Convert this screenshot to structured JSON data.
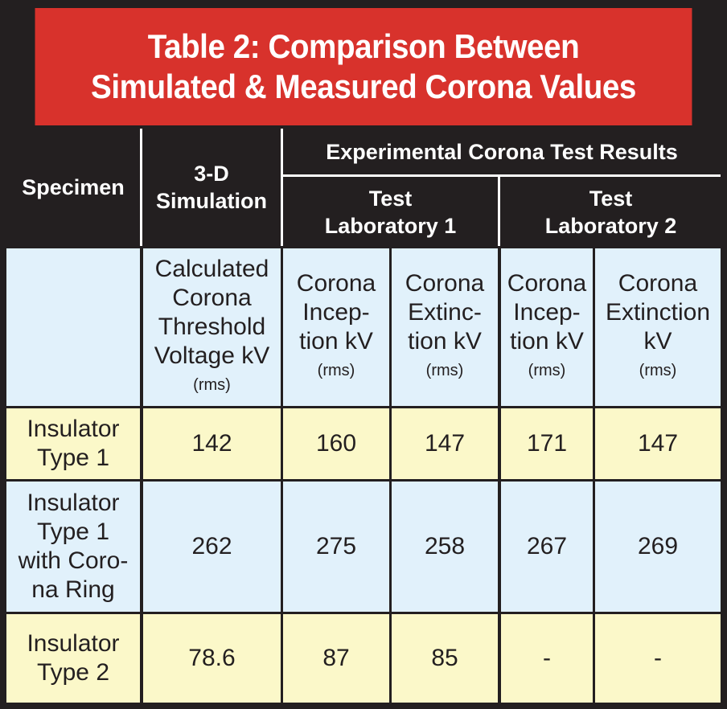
{
  "title": {
    "line1": "Table 2: Comparison Between",
    "line2": "Simulated & Measured Corona Values"
  },
  "header": {
    "specimen": "Specimen",
    "sim_line1": "3-D",
    "sim_line2": "Simulation",
    "experimental": "Experimental Corona Test Results",
    "lab1_line1": "Test",
    "lab1_line2": "Laboratory 1",
    "lab2_line1": "Test",
    "lab2_line2": "Laboratory 2"
  },
  "subheader": {
    "calc": [
      "Calculated",
      "Corona",
      "Threshold",
      "Voltage kV"
    ],
    "calc_unit": "(rms)",
    "lab1_inception": [
      "Corona",
      "Incep-",
      "tion kV"
    ],
    "lab1_inception_unit": "(rms)",
    "lab1_extinction": [
      "Corona",
      "Extinc-",
      "tion kV"
    ],
    "lab1_extinction_unit": "(rms)",
    "lab2_inception": [
      "Corona",
      "Incep-",
      "tion kV"
    ],
    "lab2_inception_unit": "(rms)",
    "lab2_extinction": [
      "Corona",
      "Extinction"
    ],
    "lab2_extinction_last": "kV",
    "lab2_extinction_unit": "(rms)"
  },
  "rows": [
    {
      "label": [
        "Insulator",
        "Type 1"
      ],
      "values": [
        "142",
        "160",
        "147",
        "171",
        "147"
      ]
    },
    {
      "label": [
        "Insulator",
        "Type 1",
        "with Coro-",
        "na Ring"
      ],
      "values": [
        "262",
        "275",
        "258",
        "267",
        "269"
      ]
    },
    {
      "label": [
        "Insulator",
        "Type 2"
      ],
      "values": [
        "78.6",
        "87",
        "85",
        "-",
        "-"
      ]
    }
  ],
  "colors": {
    "title_bg": "#d8322c",
    "header_bg": "#231f20",
    "subheader_bg": "#e1f1fb",
    "row_bg": "#fbf8c9"
  }
}
